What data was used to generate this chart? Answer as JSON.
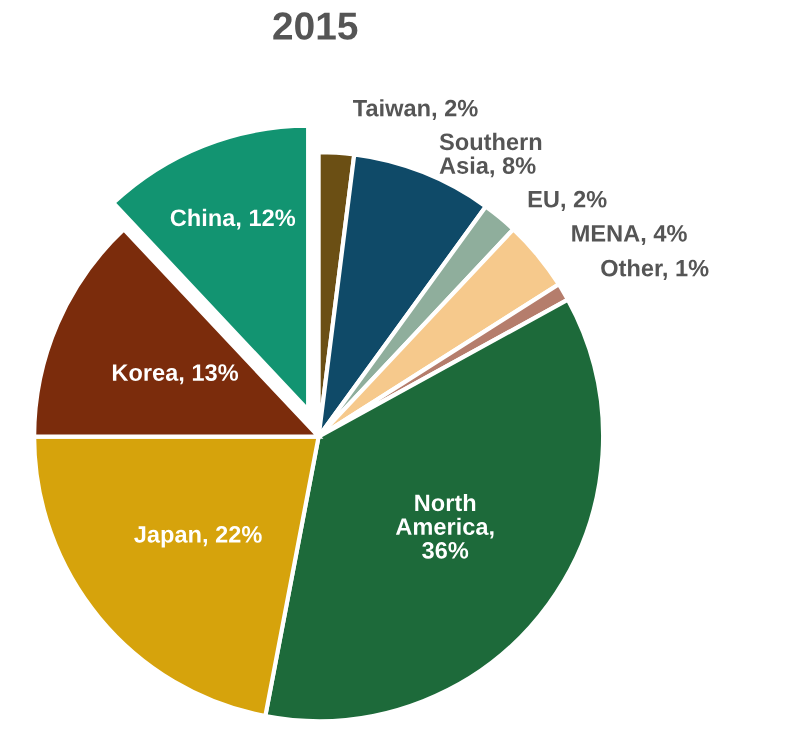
{
  "chart_data": {
    "type": "pie",
    "title": "2015",
    "categories": [
      "Taiwan, 2%",
      "Southern Asia, 8%",
      "EU, 2%",
      "MENA, 4%",
      "Other, 1%",
      "North America, 36%",
      "Japan, 22%",
      "Korea, 13%",
      "China, 12%"
    ],
    "values": [
      2,
      8,
      2,
      4,
      1,
      36,
      22,
      13,
      12
    ],
    "colors": [
      "#6b4f14",
      "#0f4a68",
      "#8fae9c",
      "#f6c98c",
      "#b57d6c",
      "#1d6a3a",
      "#d6a30c",
      "#7b2c0c",
      "#129471"
    ]
  }
}
